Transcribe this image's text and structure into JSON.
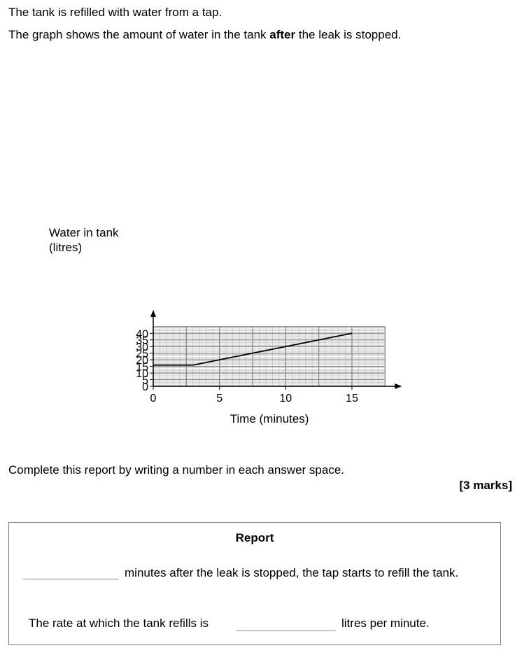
{
  "intro": {
    "line1": "The tank is refilled with water from a tap.",
    "line2_before": "The graph shows the amount of water in the tank ",
    "line2_bold": "after",
    "line2_after": " the leak is stopped."
  },
  "chart_data": {
    "type": "line",
    "xlabel": "Time (minutes)",
    "ylabel_lines": [
      "Water in tank",
      "(litres)"
    ],
    "xlim": [
      0,
      17.5
    ],
    "ylim": [
      0,
      45
    ],
    "x_ticks": [
      0,
      5,
      10,
      15
    ],
    "y_ticks": [
      0,
      5,
      10,
      15,
      20,
      25,
      30,
      35,
      40
    ],
    "grid": true,
    "series": [
      {
        "x": [
          0,
          3,
          15
        ],
        "y": [
          16,
          16,
          40
        ]
      }
    ]
  },
  "instruction": "Complete this report by writing a number in each answer space.",
  "marks": "[3 marks]",
  "report": {
    "title": "Report",
    "line1": "minutes after the leak is stopped, the tap starts to refill the tank.",
    "line2_before": "The rate at which the tank refills is",
    "line2_after": "litres per minute."
  }
}
